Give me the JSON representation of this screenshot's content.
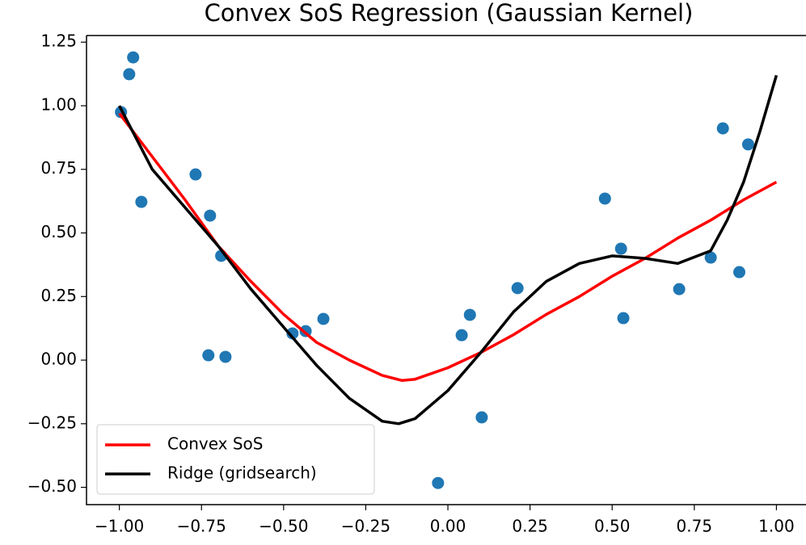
{
  "chart_data": {
    "type": "line",
    "title": "Convex SoS Regression (Gaussian Kernel)",
    "xlim": [
      -1.1,
      1.09
    ],
    "ylim": [
      -0.568,
      1.276
    ],
    "xticks": [
      {
        "value": -1,
        "label": "−1.00"
      },
      {
        "value": -0.75,
        "label": "−0.75"
      },
      {
        "value": -0.5,
        "label": "−0.50"
      },
      {
        "value": -0.25,
        "label": "−0.25"
      },
      {
        "value": 0,
        "label": "0.00"
      },
      0.25,
      {
        "value": 0.5,
        "label": "0.50"
      },
      0.75,
      {
        "value": 1,
        "label": "1.00"
      }
    ],
    "yticks": [
      {
        "value": -0.5,
        "label": "−0.50"
      },
      {
        "value": -0.25,
        "label": "−0.25"
      },
      {
        "value": 0,
        "label": "0.00"
      },
      0.25,
      {
        "value": 0.5,
        "label": "0.50"
      },
      0.75,
      {
        "value": 1,
        "label": "1.00"
      },
      1.25
    ],
    "legend": "lower left",
    "series": [
      {
        "type": "scatter",
        "color": "#1f77b4",
        "x": [
          -0.995,
          -0.97,
          -0.958,
          -0.933,
          -0.768,
          -0.724,
          -0.69,
          -0.729,
          -0.677,
          -0.473,
          -0.433,
          -0.379,
          -0.03,
          0.042,
          0.067,
          0.103,
          0.212,
          0.478,
          0.527,
          0.534,
          0.704,
          0.8,
          0.837,
          0.887,
          0.914
        ],
        "values": [
          0.975,
          1.124,
          1.19,
          0.622,
          0.73,
          0.568,
          0.41,
          0.019,
          0.013,
          0.105,
          0.114,
          0.162,
          -0.483,
          0.098,
          0.178,
          -0.225,
          0.283,
          0.635,
          0.438,
          0.165,
          0.279,
          0.403,
          0.911,
          0.346,
          0.848
        ]
      },
      {
        "type": "line",
        "name": "Convex SoS",
        "color": "#ff0000",
        "x": [
          -1,
          -0.9,
          -0.8,
          -0.7,
          -0.6,
          -0.5,
          -0.4,
          -0.3,
          -0.2,
          -0.14,
          -0.1,
          0,
          0.1,
          0.2,
          0.3,
          0.4,
          0.5,
          0.6,
          0.7,
          0.8,
          0.9,
          1
        ],
        "values": [
          0.97,
          0.8,
          0.63,
          0.45,
          0.31,
          0.18,
          0.07,
          0.0,
          -0.06,
          -0.08,
          -0.075,
          -0.03,
          0.03,
          0.1,
          0.18,
          0.25,
          0.33,
          0.4,
          0.48,
          0.55,
          0.63,
          0.7
        ]
      },
      {
        "type": "line",
        "name": "Ridge (gridsearch)",
        "color": "#000000",
        "x": [
          -1,
          -0.9,
          -0.8,
          -0.7,
          -0.6,
          -0.5,
          -0.4,
          -0.3,
          -0.2,
          -0.15,
          -0.1,
          0,
          0.1,
          0.2,
          0.3,
          0.4,
          0.5,
          0.6,
          0.7,
          0.8,
          0.85,
          0.9,
          0.95,
          1
        ],
        "values": [
          1.0,
          0.75,
          0.6,
          0.45,
          0.28,
          0.13,
          -0.02,
          -0.15,
          -0.24,
          -0.25,
          -0.23,
          -0.12,
          0.03,
          0.19,
          0.31,
          0.38,
          0.41,
          0.4,
          0.38,
          0.43,
          0.55,
          0.7,
          0.9,
          1.12
        ]
      }
    ]
  }
}
